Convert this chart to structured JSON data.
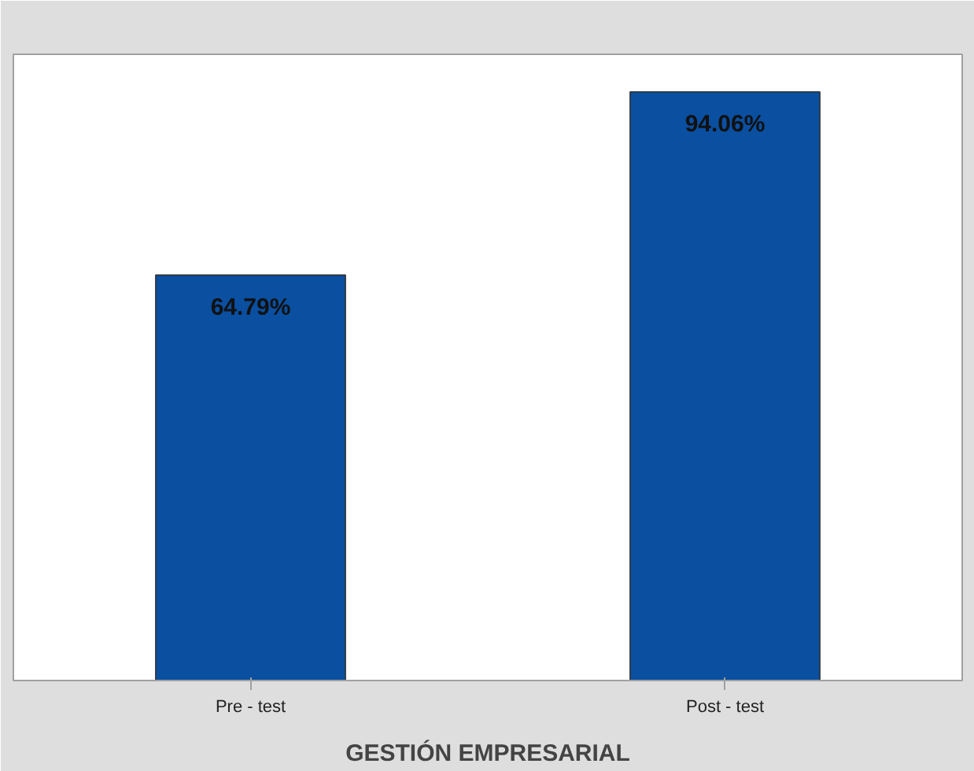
{
  "chart_data": {
    "type": "bar",
    "xlabel": "GESTIÓN EMPRESARIAL",
    "categories": [
      "Pre - test",
      "Post - test"
    ],
    "values": [
      64.79,
      94.06
    ],
    "value_labels": [
      "64.79%",
      "94.06%"
    ],
    "color": "#0a4fa0"
  }
}
